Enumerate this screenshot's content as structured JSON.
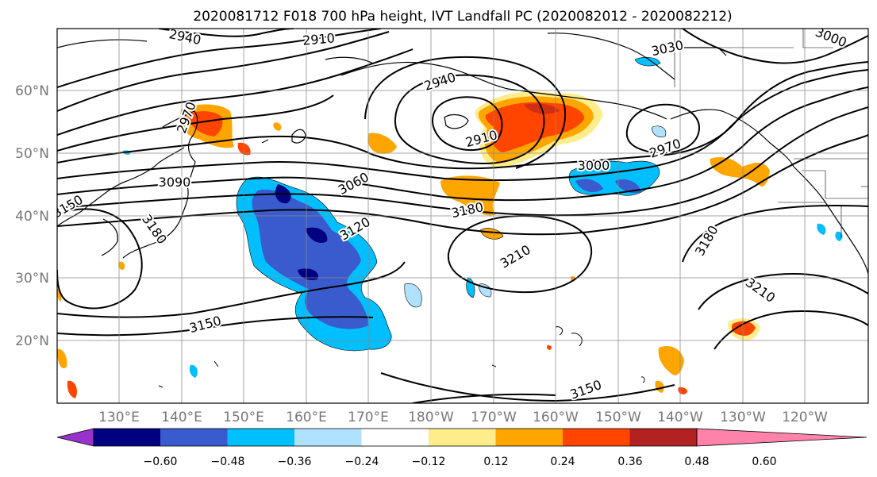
{
  "title": "2020081712 F018 700 hPa height, IVT Landfall PC (2020082012 - 2020082212)",
  "map": {
    "lat_labels": [
      "60°N",
      "50°N",
      "40°N",
      "30°N",
      "20°N"
    ],
    "lon_labels": [
      "130°E",
      "140°E",
      "150°E",
      "160°E",
      "170°E",
      "180°W",
      "170°W",
      "160°W",
      "150°W",
      "140°W",
      "130°W",
      "120°W"
    ],
    "grid": true,
    "contour_labels": [
      "2940",
      "2910",
      "3030",
      "3000",
      "2940",
      "2910",
      "2970",
      "3000",
      "3060",
      "3090",
      "3120",
      "3180",
      "3180",
      "3150",
      "3180",
      "3210",
      "3210",
      "3150",
      "3150",
      "3150",
      "2970"
    ]
  },
  "colorbar": {
    "tick_labels": [
      "−0.60",
      "−0.48",
      "−0.36",
      "−0.24",
      "−0.12",
      "0.12",
      "0.24",
      "0.36",
      "0.48",
      "0.60"
    ],
    "colors": [
      "#9932cc",
      "#000080",
      "#3a5bcd",
      "#00bfff",
      "#b0e2ff",
      "#ffffff",
      "#ffec8b",
      "#ffa500",
      "#ff4500",
      "#b22222",
      "#ff82ab"
    ],
    "extend": "both"
  },
  "chart_data": {
    "type": "heatmap",
    "title": "2020081712 F018 700 hPa height, IVT Landfall PC (2020082012 - 2020082212)",
    "xlabel": "",
    "ylabel": "",
    "x_ticks": [
      "130°E",
      "140°E",
      "150°E",
      "160°E",
      "170°E",
      "180°W",
      "170°W",
      "160°W",
      "150°W",
      "140°W",
      "130°W",
      "120°W"
    ],
    "y_ticks": [
      "60°N",
      "50°N",
      "40°N",
      "30°N",
      "20°N"
    ],
    "contour_levels": [
      2910,
      2940,
      2970,
      3000,
      3030,
      3060,
      3090,
      3120,
      3150,
      3180,
      3210
    ],
    "color_levels": [
      -0.6,
      -0.48,
      -0.36,
      -0.24,
      -0.12,
      0.12,
      0.24,
      0.36,
      0.48,
      0.6
    ]
  }
}
